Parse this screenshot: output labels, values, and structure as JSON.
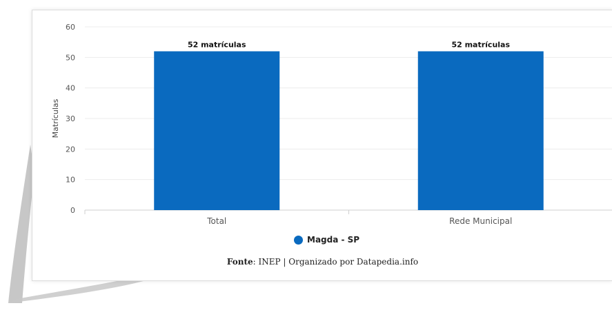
{
  "chart_data": {
    "type": "bar",
    "categories": [
      "Total",
      "Rede Municipal"
    ],
    "series": [
      {
        "name": "Magda - SP",
        "values": [
          52,
          52
        ],
        "color": "#0a6abf",
        "data_labels": [
          "52 matrículas",
          "52 matrículas"
        ]
      }
    ],
    "ylabel": "Matrículas",
    "ylim": [
      0,
      60
    ],
    "yticks": [
      0,
      10,
      20,
      30,
      40,
      50,
      60
    ],
    "grid": true,
    "legend_position": "bottom-center"
  },
  "source": {
    "label": "Fonte",
    "separator": ": ",
    "text": "INEP | Organizado por Datapedia.info"
  }
}
